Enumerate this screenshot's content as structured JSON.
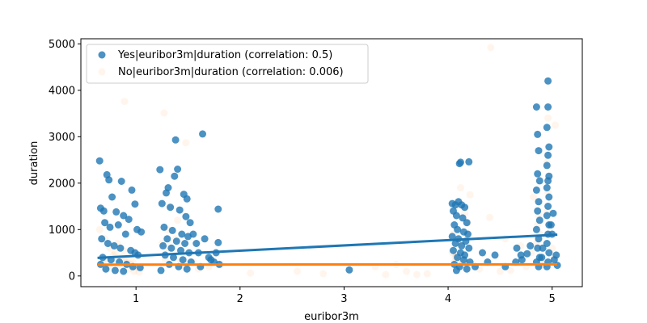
{
  "chart_data": {
    "type": "scatter",
    "title": "",
    "xlabel": "euribor3m",
    "ylabel": "duration",
    "xlim": [
      0.47,
      5.29
    ],
    "ylim": [
      -230,
      5110
    ],
    "x_ticks": [
      1,
      2,
      3,
      4,
      5
    ],
    "y_ticks": [
      0,
      1000,
      2000,
      3000,
      4000,
      5000
    ],
    "grid": false,
    "legend_position": "top-left",
    "series": [
      {
        "name": "Yes|euribor3m|duration (correlation: 0.5)",
        "color": "#1f77b4",
        "opacity": 0.8,
        "regression_line": {
          "x": [
            0.63,
            5.05
          ],
          "y": [
            390,
            890
          ]
        },
        "points": [
          [
            0.65,
            2480
          ],
          [
            0.72,
            2180
          ],
          [
            0.74,
            2070
          ],
          [
            0.86,
            2040
          ],
          [
            0.77,
            1700
          ],
          [
            0.96,
            1850
          ],
          [
            0.99,
            1550
          ],
          [
            0.66,
            1460
          ],
          [
            0.69,
            1400
          ],
          [
            0.81,
            1380
          ],
          [
            0.88,
            1300
          ],
          [
            0.93,
            1220
          ],
          [
            1.01,
            1000
          ],
          [
            1.05,
            950
          ],
          [
            0.7,
            1150
          ],
          [
            0.75,
            1050
          ],
          [
            0.83,
            1100
          ],
          [
            0.9,
            900
          ],
          [
            0.67,
            800
          ],
          [
            0.73,
            700
          ],
          [
            0.79,
            650
          ],
          [
            0.85,
            600
          ],
          [
            0.95,
            550
          ],
          [
            0.99,
            500
          ],
          [
            1.02,
            450
          ],
          [
            0.68,
            400
          ],
          [
            0.76,
            350
          ],
          [
            0.84,
            300
          ],
          [
            0.91,
            250
          ],
          [
            0.97,
            200
          ],
          [
            0.71,
            150
          ],
          [
            0.8,
            120
          ],
          [
            0.88,
            100
          ],
          [
            1.04,
            180
          ],
          [
            0.66,
            250
          ],
          [
            1.23,
            2290
          ],
          [
            1.31,
            1900
          ],
          [
            1.29,
            1790
          ],
          [
            1.4,
            2300
          ],
          [
            1.37,
            2150
          ],
          [
            1.38,
            2930
          ],
          [
            1.46,
            1760
          ],
          [
            1.49,
            1660
          ],
          [
            1.25,
            1560
          ],
          [
            1.33,
            1480
          ],
          [
            1.42,
            1420
          ],
          [
            1.48,
            1280
          ],
          [
            1.52,
            1150
          ],
          [
            1.27,
            1050
          ],
          [
            1.35,
            980
          ],
          [
            1.44,
            900
          ],
          [
            1.5,
            850
          ],
          [
            1.3,
            800
          ],
          [
            1.39,
            750
          ],
          [
            1.47,
            700
          ],
          [
            1.26,
            650
          ],
          [
            1.34,
            600
          ],
          [
            1.43,
            550
          ],
          [
            1.51,
            500
          ],
          [
            1.28,
            450
          ],
          [
            1.36,
            400
          ],
          [
            1.45,
            350
          ],
          [
            1.53,
            300
          ],
          [
            1.32,
            250
          ],
          [
            1.41,
            200
          ],
          [
            1.49,
            150
          ],
          [
            1.24,
            120
          ],
          [
            1.55,
            900
          ],
          [
            1.58,
            700
          ],
          [
            1.6,
            500
          ],
          [
            1.64,
            3060
          ],
          [
            1.66,
            800
          ],
          [
            1.7,
            400
          ],
          [
            1.72,
            350
          ],
          [
            1.75,
            300
          ],
          [
            1.79,
            1440
          ],
          [
            1.79,
            720
          ],
          [
            1.77,
            500
          ],
          [
            1.8,
            250
          ],
          [
            1.62,
            200
          ],
          [
            4.04,
            1560
          ],
          [
            4.07,
            1530
          ],
          [
            4.1,
            1600
          ],
          [
            4.13,
            1530
          ],
          [
            4.16,
            1480
          ],
          [
            4.11,
            2420
          ],
          [
            4.12,
            2450
          ],
          [
            4.2,
            2460
          ],
          [
            4.05,
            1400
          ],
          [
            4.08,
            1300
          ],
          [
            4.14,
            1250
          ],
          [
            4.18,
            1150
          ],
          [
            4.06,
            1100
          ],
          [
            4.09,
            1000
          ],
          [
            4.15,
            950
          ],
          [
            4.19,
            900
          ],
          [
            4.04,
            850
          ],
          [
            4.1,
            800
          ],
          [
            4.17,
            750
          ],
          [
            4.07,
            700
          ],
          [
            4.13,
            650
          ],
          [
            4.2,
            600
          ],
          [
            4.05,
            550
          ],
          [
            4.12,
            500
          ],
          [
            4.16,
            450
          ],
          [
            4.09,
            400
          ],
          [
            4.15,
            350
          ],
          [
            4.21,
            300
          ],
          [
            4.06,
            250
          ],
          [
            4.11,
            200
          ],
          [
            4.18,
            150
          ],
          [
            4.08,
            120
          ],
          [
            3.05,
            130
          ],
          [
            4.33,
            500
          ],
          [
            4.45,
            450
          ],
          [
            4.38,
            300
          ],
          [
            4.26,
            200
          ],
          [
            4.55,
            200
          ],
          [
            4.65,
            300
          ],
          [
            4.71,
            350
          ],
          [
            4.85,
            3640
          ],
          [
            4.86,
            3050
          ],
          [
            4.87,
            2700
          ],
          [
            4.86,
            2200
          ],
          [
            4.88,
            2050
          ],
          [
            4.85,
            1850
          ],
          [
            4.87,
            1600
          ],
          [
            4.86,
            1400
          ],
          [
            4.88,
            1200
          ],
          [
            4.85,
            1000
          ],
          [
            4.87,
            800
          ],
          [
            4.86,
            600
          ],
          [
            4.88,
            400
          ],
          [
            4.85,
            300
          ],
          [
            4.87,
            200
          ],
          [
            4.96,
            4200
          ],
          [
            4.96,
            3640
          ],
          [
            4.95,
            3200
          ],
          [
            4.97,
            2780
          ],
          [
            4.96,
            2600
          ],
          [
            4.95,
            2380
          ],
          [
            4.97,
            2150
          ],
          [
            4.96,
            2050
          ],
          [
            4.95,
            1900
          ],
          [
            4.97,
            1700
          ],
          [
            4.96,
            1500
          ],
          [
            4.95,
            1300
          ],
          [
            4.97,
            1100
          ],
          [
            4.96,
            900
          ],
          [
            4.95,
            700
          ],
          [
            4.97,
            500
          ],
          [
            4.96,
            300
          ],
          [
            4.95,
            200
          ],
          [
            5.01,
            1350
          ],
          [
            4.99,
            1100
          ],
          [
            5.0,
            900
          ],
          [
            5.04,
            450
          ],
          [
            5.02,
            350
          ],
          [
            5.05,
            230
          ],
          [
            4.91,
            600
          ],
          [
            4.9,
            400
          ],
          [
            4.76,
            480
          ],
          [
            4.79,
            650
          ],
          [
            4.66,
            600
          ],
          [
            4.7,
            450
          ]
        ]
      },
      {
        "name": "No|euribor3m|duration (correlation: 0.006)",
        "color": "#ff7f0e",
        "opacity": 0.08,
        "regression_line": {
          "x": [
            0.63,
            5.05
          ],
          "y": [
            245,
            250
          ]
        },
        "points": [
          [
            0.89,
            3760
          ],
          [
            1.27,
            3510
          ],
          [
            1.48,
            2870
          ],
          [
            4.41,
            4920
          ],
          [
            4.96,
            3400
          ],
          [
            5.03,
            3250
          ],
          [
            4.95,
            2450
          ],
          [
            4.82,
            1700
          ],
          [
            4.12,
            1900
          ],
          [
            4.21,
            1750
          ],
          [
            4.1,
            1550
          ],
          [
            4.16,
            1350
          ],
          [
            4.19,
            1150
          ],
          [
            4.05,
            900
          ],
          [
            4.13,
            700
          ],
          [
            4.4,
            1260
          ],
          [
            4.55,
            800
          ],
          [
            4.7,
            650
          ],
          [
            4.8,
            500
          ],
          [
            4.88,
            900
          ],
          [
            4.96,
            1800
          ],
          [
            4.95,
            1400
          ],
          [
            4.97,
            1100
          ],
          [
            4.87,
            1300
          ],
          [
            4.86,
            1100
          ],
          [
            4.85,
            700
          ],
          [
            4.96,
            900
          ],
          [
            5.0,
            600
          ],
          [
            5.02,
            400
          ],
          [
            4.89,
            300
          ],
          [
            3.5,
            250
          ],
          [
            3.3,
            200
          ],
          [
            3.6,
            100
          ],
          [
            3.7,
            30
          ],
          [
            3.8,
            50
          ],
          [
            3.4,
            30
          ],
          [
            3.05,
            150
          ],
          [
            2.55,
            100
          ],
          [
            2.8,
            50
          ],
          [
            2.1,
            60
          ],
          [
            1.82,
            250
          ],
          [
            1.7,
            200
          ],
          [
            1.6,
            150
          ],
          [
            1.55,
            300
          ],
          [
            1.45,
            500
          ],
          [
            1.38,
            800
          ],
          [
            1.3,
            1000
          ],
          [
            1.25,
            700
          ],
          [
            1.4,
            1200
          ],
          [
            1.33,
            1500
          ],
          [
            1.36,
            400
          ],
          [
            1.43,
            300
          ],
          [
            1.48,
            250
          ],
          [
            1.28,
            350
          ],
          [
            1.31,
            600
          ],
          [
            0.65,
            1000
          ],
          [
            0.7,
            800
          ],
          [
            0.75,
            600
          ],
          [
            0.8,
            500
          ],
          [
            0.85,
            400
          ],
          [
            0.9,
            300
          ],
          [
            0.95,
            250
          ],
          [
            1.0,
            200
          ],
          [
            0.72,
            350
          ],
          [
            0.78,
            450
          ],
          [
            0.82,
            700
          ],
          [
            0.88,
            550
          ],
          [
            0.93,
            150
          ],
          [
            0.98,
            100
          ],
          [
            1.03,
            80
          ],
          [
            0.68,
            300
          ],
          [
            0.74,
            200
          ],
          [
            0.84,
            250
          ],
          [
            0.91,
            350
          ],
          [
            0.97,
            300
          ],
          [
            4.06,
            300
          ],
          [
            4.09,
            200
          ],
          [
            4.14,
            250
          ],
          [
            4.18,
            180
          ],
          [
            4.07,
            400
          ],
          [
            4.11,
            350
          ],
          [
            4.15,
            300
          ],
          [
            4.2,
            250
          ],
          [
            4.04,
            500
          ],
          [
            4.08,
            450
          ],
          [
            4.3,
            150
          ],
          [
            4.5,
            100
          ],
          [
            4.6,
            120
          ],
          [
            4.75,
            200
          ],
          [
            4.92,
            250
          ]
        ]
      }
    ]
  }
}
